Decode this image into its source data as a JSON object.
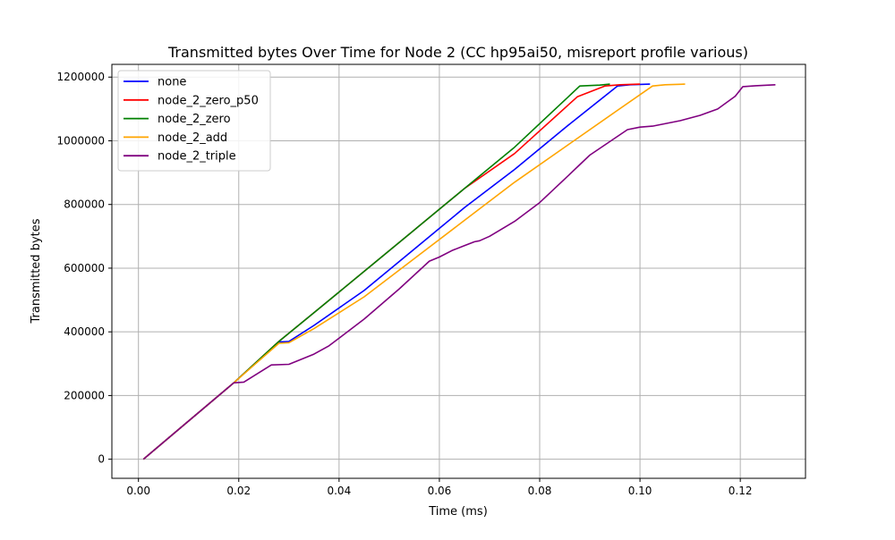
{
  "chart_data": {
    "type": "line",
    "title": "Transmitted bytes Over Time for Node 2 (CC hp95ai50, misreport profile various)",
    "xlabel": "Time (ms)",
    "ylabel": "Transmitted bytes",
    "xlim": [
      -0.0053,
      0.133
    ],
    "ylim": [
      -60000,
      1240000
    ],
    "x_ticks": [
      0.0,
      0.02,
      0.04,
      0.06,
      0.08,
      0.1,
      0.12
    ],
    "x_tick_labels": [
      "0.00",
      "0.02",
      "0.04",
      "0.06",
      "0.08",
      "0.10",
      "0.12"
    ],
    "y_ticks": [
      0,
      200000,
      400000,
      600000,
      800000,
      1000000,
      1200000
    ],
    "y_tick_labels": [
      "0",
      "200000",
      "400000",
      "600000",
      "800000",
      "1000000",
      "1200000"
    ],
    "grid": true,
    "legend_position": "top-left",
    "series": [
      {
        "name": "none",
        "color": "#0000ff",
        "points": [
          [
            0.001,
            0
          ],
          [
            0.007,
            80000
          ],
          [
            0.019,
            240000
          ],
          [
            0.028,
            368000
          ],
          [
            0.03,
            370000
          ],
          [
            0.035,
            420000
          ],
          [
            0.045,
            530000
          ],
          [
            0.055,
            660000
          ],
          [
            0.065,
            790000
          ],
          [
            0.075,
            910000
          ],
          [
            0.085,
            1040000
          ],
          [
            0.0955,
            1172000
          ],
          [
            0.098,
            1176000
          ],
          [
            0.102,
            1178000
          ]
        ]
      },
      {
        "name": "node_2_zero_p50",
        "color": "#ff0000",
        "points": [
          [
            0.001,
            0
          ],
          [
            0.007,
            80000
          ],
          [
            0.019,
            240000
          ],
          [
            0.028,
            370000
          ],
          [
            0.035,
            460000
          ],
          [
            0.045,
            590000
          ],
          [
            0.055,
            720000
          ],
          [
            0.065,
            850000
          ],
          [
            0.075,
            960000
          ],
          [
            0.0875,
            1138000
          ],
          [
            0.093,
            1172000
          ],
          [
            0.096,
            1176000
          ],
          [
            0.1,
            1178000
          ]
        ]
      },
      {
        "name": "node_2_zero",
        "color": "#008000",
        "points": [
          [
            0.001,
            0
          ],
          [
            0.007,
            80000
          ],
          [
            0.019,
            240000
          ],
          [
            0.028,
            370000
          ],
          [
            0.035,
            460000
          ],
          [
            0.045,
            590000
          ],
          [
            0.055,
            720000
          ],
          [
            0.065,
            850000
          ],
          [
            0.075,
            980000
          ],
          [
            0.088,
            1172000
          ],
          [
            0.092,
            1175000
          ],
          [
            0.094,
            1178000
          ]
        ]
      },
      {
        "name": "node_2_add",
        "color": "#ffa500",
        "points": [
          [
            0.001,
            0
          ],
          [
            0.007,
            80000
          ],
          [
            0.019,
            240000
          ],
          [
            0.028,
            364000
          ],
          [
            0.03,
            366000
          ],
          [
            0.035,
            410000
          ],
          [
            0.045,
            510000
          ],
          [
            0.055,
            630000
          ],
          [
            0.065,
            750000
          ],
          [
            0.075,
            870000
          ],
          [
            0.085,
            980000
          ],
          [
            0.095,
            1090000
          ],
          [
            0.1025,
            1172000
          ],
          [
            0.105,
            1176000
          ],
          [
            0.109,
            1178000
          ]
        ]
      },
      {
        "name": "node_2_triple",
        "color": "#800080",
        "points": [
          [
            0.001,
            0
          ],
          [
            0.007,
            80000
          ],
          [
            0.019,
            240000
          ],
          [
            0.021,
            242000
          ],
          [
            0.0265,
            296000
          ],
          [
            0.03,
            298000
          ],
          [
            0.035,
            330000
          ],
          [
            0.038,
            356000
          ],
          [
            0.045,
            440000
          ],
          [
            0.052,
            535000
          ],
          [
            0.058,
            622000
          ],
          [
            0.06,
            635000
          ],
          [
            0.0625,
            655000
          ],
          [
            0.065,
            671000
          ],
          [
            0.067,
            683000
          ],
          [
            0.068,
            686000
          ],
          [
            0.07,
            700000
          ],
          [
            0.075,
            747000
          ],
          [
            0.08,
            806000
          ],
          [
            0.085,
            880000
          ],
          [
            0.09,
            955000
          ],
          [
            0.0975,
            1035000
          ],
          [
            0.1,
            1043000
          ],
          [
            0.1025,
            1046000
          ],
          [
            0.108,
            1063000
          ],
          [
            0.112,
            1080000
          ],
          [
            0.1155,
            1100000
          ],
          [
            0.119,
            1140000
          ],
          [
            0.1205,
            1170000
          ],
          [
            0.123,
            1173000
          ],
          [
            0.127,
            1176000
          ]
        ]
      }
    ]
  }
}
